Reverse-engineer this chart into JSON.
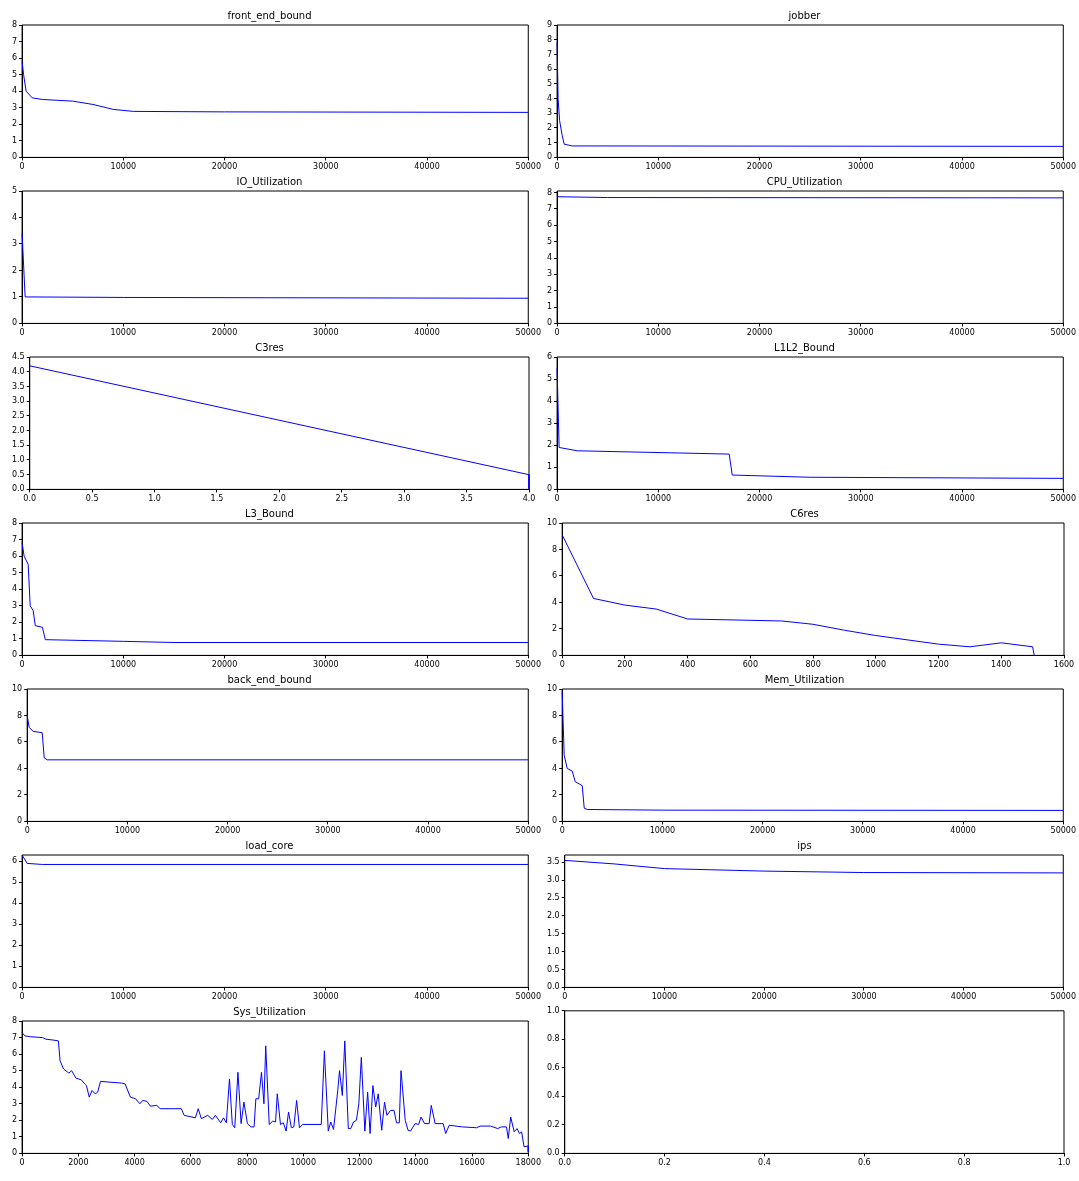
{
  "chart_data": [
    {
      "type": "line",
      "title": "front_end_bound",
      "xlim": [
        0,
        50000
      ],
      "xticks": [
        0,
        10000,
        20000,
        30000,
        40000,
        50000
      ],
      "ylim": [
        0,
        8
      ],
      "yticks": [
        0,
        1,
        2,
        3,
        4,
        5,
        6,
        7,
        8
      ],
      "series": [
        {
          "color": "#0000ff",
          "x": [
            0,
            150,
            400,
            1000,
            2000,
            5000,
            7000,
            9000,
            11000,
            20000,
            50000
          ],
          "values": [
            5.8,
            5.0,
            4.0,
            3.6,
            3.5,
            3.4,
            3.2,
            2.9,
            2.78,
            2.75,
            2.72
          ]
        }
      ]
    },
    {
      "type": "line",
      "title": "jobber",
      "xlim": [
        0,
        50000
      ],
      "xticks": [
        0,
        10000,
        20000,
        30000,
        40000,
        50000
      ],
      "ylim": [
        0,
        9
      ],
      "yticks": [
        0,
        1,
        2,
        3,
        4,
        5,
        6,
        7,
        8,
        9
      ],
      "series": [
        {
          "color": "#0000ff",
          "x": [
            0,
            100,
            250,
            500,
            700,
            1500,
            50000
          ],
          "values": [
            7.8,
            4,
            2.5,
            1.5,
            0.9,
            0.78,
            0.75
          ]
        }
      ]
    },
    {
      "type": "line",
      "title": "IO_Utilization",
      "xlim": [
        0,
        50000
      ],
      "xticks": [
        0,
        10000,
        20000,
        30000,
        40000,
        50000
      ],
      "ylim": [
        0,
        5
      ],
      "yticks": [
        0,
        1,
        2,
        3,
        4,
        5
      ],
      "series": [
        {
          "color": "#0000ff",
          "x": [
            0,
            300,
            10000,
            50000
          ],
          "values": [
            3.4,
            1.0,
            0.98,
            0.95
          ]
        }
      ]
    },
    {
      "type": "line",
      "title": "CPU_Utilization",
      "xlim": [
        0,
        50000
      ],
      "xticks": [
        0,
        10000,
        20000,
        30000,
        40000,
        50000
      ],
      "ylim": [
        0,
        8.1
      ],
      "yticks": [
        0,
        1,
        2,
        3,
        4,
        5,
        6,
        7,
        8
      ],
      "series": [
        {
          "color": "#0000ff",
          "x": [
            0,
            5000,
            50000
          ],
          "values": [
            7.75,
            7.7,
            7.68
          ]
        }
      ]
    },
    {
      "type": "line",
      "title": "C3res",
      "xlim": [
        0,
        4
      ],
      "xticks": [
        {
          "value": 0,
          "label": "0.0"
        },
        {
          "value": 0.5,
          "label": "0.5"
        },
        {
          "value": 1,
          "label": "1.0"
        },
        {
          "value": 1.5,
          "label": "1.5"
        },
        {
          "value": 2,
          "label": "2.0"
        },
        {
          "value": 2.5,
          "label": "2.5"
        },
        {
          "value": 3,
          "label": "3.0"
        },
        {
          "value": 3.5,
          "label": "3.5"
        },
        {
          "value": 4,
          "label": "4.0"
        }
      ],
      "ylim": [
        0,
        4.5
      ],
      "yticks": [
        {
          "value": 0,
          "label": "0.0"
        },
        {
          "value": 0.5,
          "label": "0.5"
        },
        {
          "value": 1,
          "label": "1.0"
        },
        {
          "value": 1.5,
          "label": "1.5"
        },
        {
          "value": 2,
          "label": "2.0"
        },
        {
          "value": 2.5,
          "label": "2.5"
        },
        {
          "value": 3,
          "label": "3.0"
        },
        {
          "value": 3.5,
          "label": "3.5"
        },
        {
          "value": 4,
          "label": "4.0"
        },
        {
          "value": 4.5,
          "label": "4.5"
        }
      ],
      "series": [
        {
          "color": "#0000ff",
          "x": [
            0,
            4,
            4
          ],
          "values": [
            4.2,
            0.5,
            0
          ]
        }
      ]
    },
    {
      "type": "line",
      "title": "L1L2_Bound",
      "xlim": [
        0,
        50000
      ],
      "xticks": [
        0,
        10000,
        20000,
        30000,
        40000,
        50000
      ],
      "ylim": [
        0,
        6
      ],
      "yticks": [
        0,
        1,
        2,
        3,
        4,
        5,
        6
      ],
      "series": [
        {
          "color": "#0000ff",
          "x": [
            0,
            200,
            2000,
            17000,
            17300,
            25000,
            50000
          ],
          "values": [
            5.5,
            1.9,
            1.75,
            1.6,
            0.65,
            0.55,
            0.5
          ]
        }
      ]
    },
    {
      "type": "line",
      "title": "L3_Bound",
      "xlim": [
        0,
        50000
      ],
      "xticks": [
        0,
        10000,
        20000,
        30000,
        40000,
        50000
      ],
      "ylim": [
        0,
        8
      ],
      "yticks": [
        0,
        1,
        2,
        3,
        4,
        5,
        6,
        7,
        8
      ],
      "series": [
        {
          "color": "#0000ff",
          "x": [
            0,
            200,
            600,
            800,
            1100,
            1300,
            2000,
            2300,
            10000,
            15000,
            50000
          ],
          "values": [
            6.8,
            6.0,
            5.5,
            3.0,
            2.7,
            1.8,
            1.7,
            0.95,
            0.85,
            0.78,
            0.78
          ]
        }
      ]
    },
    {
      "type": "line",
      "title": "C6res",
      "xlim": [
        0,
        1600
      ],
      "xticks": [
        0,
        200,
        400,
        600,
        800,
        1000,
        1200,
        1400,
        1600
      ],
      "ylim": [
        0,
        10
      ],
      "yticks": [
        0,
        2,
        4,
        6,
        8,
        10
      ],
      "series": [
        {
          "color": "#0000ff",
          "x": [
            0,
            100,
            200,
            300,
            400,
            700,
            800,
            900,
            1000,
            1200,
            1300,
            1400,
            1500,
            1505
          ],
          "values": [
            9.1,
            4.3,
            3.8,
            3.5,
            2.75,
            2.6,
            2.35,
            1.9,
            1.5,
            0.85,
            0.65,
            0.95,
            0.65,
            0
          ]
        }
      ]
    },
    {
      "type": "line",
      "title": "back_end_bound",
      "xlim": [
        0,
        50000
      ],
      "xticks": [
        0,
        10000,
        20000,
        30000,
        40000,
        50000
      ],
      "ylim": [
        0,
        10
      ],
      "yticks": [
        0,
        2,
        4,
        6,
        8,
        10
      ],
      "series": [
        {
          "color": "#0000ff",
          "x": [
            0,
            200,
            600,
            1500,
            1700,
            2000,
            50000
          ],
          "values": [
            8,
            7.1,
            6.8,
            6.7,
            4.8,
            4.65,
            4.65
          ]
        }
      ]
    },
    {
      "type": "line",
      "title": "Mem_Utilization",
      "xlim": [
        0,
        50000
      ],
      "xticks": [
        0,
        10000,
        20000,
        30000,
        40000,
        50000
      ],
      "ylim": [
        0,
        10
      ],
      "yticks": [
        0,
        2,
        4,
        6,
        8,
        10
      ],
      "series": [
        {
          "color": "#0000ff",
          "x": [
            0,
            200,
            500,
            1000,
            1300,
            2000,
            2200,
            2500,
            10000,
            50000
          ],
          "values": [
            9.8,
            5,
            4,
            3.8,
            3.0,
            2.7,
            1.0,
            0.9,
            0.85,
            0.83
          ]
        }
      ]
    },
    {
      "type": "line",
      "title": "load_core",
      "xlim": [
        0,
        50000
      ],
      "xticks": [
        0,
        10000,
        20000,
        30000,
        40000,
        50000
      ],
      "ylim": [
        0,
        6.3
      ],
      "yticks": [
        0,
        1,
        2,
        3,
        4,
        5,
        6
      ],
      "series": [
        {
          "color": "#0000ff",
          "x": [
            0,
            500,
            2000,
            50000
          ],
          "values": [
            6.3,
            5.9,
            5.85,
            5.85
          ]
        }
      ]
    },
    {
      "type": "line",
      "title": "ips",
      "xlim": [
        0,
        50000
      ],
      "xticks": [
        0,
        10000,
        20000,
        30000,
        40000,
        50000
      ],
      "ylim": [
        0,
        3.7
      ],
      "yticks": [
        {
          "value": 0,
          "label": "0.0"
        },
        {
          "value": 0.5,
          "label": "0.5"
        },
        {
          "value": 1,
          "label": "1.0"
        },
        {
          "value": 1.5,
          "label": "1.5"
        },
        {
          "value": 2,
          "label": "2.0"
        },
        {
          "value": 2.5,
          "label": "2.5"
        },
        {
          "value": 3,
          "label": "3.0"
        },
        {
          "value": 3.5,
          "label": "3.5"
        }
      ],
      "series": [
        {
          "color": "#0000ff",
          "x": [
            0,
            5000,
            10000,
            20000,
            30000,
            50000
          ],
          "values": [
            3.55,
            3.45,
            3.32,
            3.25,
            3.21,
            3.2
          ]
        }
      ]
    },
    {
      "type": "line",
      "title": "Sys_Utilization",
      "xlim": [
        0,
        18000
      ],
      "xticks": [
        0,
        2000,
        4000,
        6000,
        8000,
        10000,
        12000,
        14000,
        16000,
        18000
      ],
      "ylim": [
        0,
        8
      ],
      "yticks": [
        0,
        1,
        2,
        3,
        4,
        5,
        6,
        7,
        8
      ],
      "series": [
        {
          "color": "#0000ff",
          "x": [
            0,
            100,
            300,
            725,
            850,
            1100,
            1290,
            1350,
            1475,
            1663,
            1763,
            1913,
            2100,
            2225,
            2288,
            2388,
            2488,
            2600,
            2688,
            2788,
            3538,
            3663,
            3850,
            4038,
            4188,
            4288,
            4438,
            4563,
            4788,
            4913,
            5663,
            5763,
            6163,
            6263,
            6375,
            6600,
            6763,
            6875,
            7063,
            7163,
            7263,
            7375,
            7475,
            7563,
            7675,
            7788,
            7888,
            8013,
            8138,
            8250,
            8313,
            8413,
            8513,
            8600,
            8663,
            8788,
            8913,
            9013,
            9075,
            9188,
            9288,
            9388,
            9475,
            9575,
            9663,
            9763,
            9863,
            9975,
            10638,
            10750,
            10888,
            10975,
            11075,
            11225,
            11288,
            11388,
            11475,
            11600,
            11688,
            11788,
            11888,
            11975,
            12063,
            12188,
            12288,
            12375,
            12475,
            12575,
            12663,
            12788,
            12888,
            12975,
            13100,
            13225,
            13313,
            13413,
            13475,
            13625,
            13725,
            13813,
            13975,
            14100,
            14188,
            14313,
            14475,
            14550,
            14688,
            14975,
            15063,
            15188,
            15663,
            16163,
            16288,
            16663,
            16913,
            17038,
            17225,
            17288,
            17375,
            17500,
            17600,
            17688,
            17763,
            17850,
            18000,
            18000
          ],
          "values": [
            7.3,
            7.1,
            7.05,
            7.0,
            6.9,
            6.85,
            6.8,
            5.6,
            5.1,
            4.85,
            5.0,
            4.55,
            4.45,
            4.2,
            4.1,
            3.4,
            3.8,
            3.6,
            3.7,
            4.35,
            4.25,
            4.2,
            3.4,
            3.3,
            3.0,
            3.2,
            3.15,
            2.85,
            2.9,
            2.7,
            2.7,
            2.3,
            2.15,
            2.7,
            2.1,
            2.3,
            2.05,
            2.3,
            1.85,
            2.15,
            1.85,
            4.5,
            1.75,
            1.55,
            4.9,
            1.8,
            3.1,
            1.8,
            1.6,
            1.6,
            3.3,
            3.3,
            4.9,
            3.0,
            6.5,
            1.75,
            1.95,
            1.9,
            3.6,
            1.75,
            1.85,
            1.35,
            2.5,
            1.55,
            1.6,
            3.2,
            1.55,
            1.75,
            1.75,
            6.2,
            1.35,
            1.9,
            1.45,
            3.8,
            5.0,
            3.5,
            6.8,
            1.5,
            1.5,
            1.9,
            2.0,
            3.0,
            5.8,
            1.35,
            3.7,
            1.2,
            4.1,
            2.8,
            3.6,
            1.4,
            3.1,
            2.3,
            2.6,
            2.6,
            1.85,
            1.85,
            5.0,
            2.0,
            1.4,
            1.35,
            1.8,
            1.75,
            2.2,
            1.8,
            1.8,
            2.9,
            1.8,
            1.8,
            1.2,
            1.7,
            1.6,
            1.55,
            1.65,
            1.65,
            1.5,
            1.6,
            1.6,
            0.9,
            2.2,
            1.3,
            1.5,
            1.2,
            1.3,
            0.4,
            0.45,
            0.1
          ]
        }
      ]
    },
    {
      "type": "line",
      "xlim": [
        0,
        1
      ],
      "xticks": [
        {
          "value": 0,
          "label": "0.0"
        },
        {
          "value": 0.2,
          "label": "0.2"
        },
        {
          "value": 0.4,
          "label": "0.4"
        },
        {
          "value": 0.6,
          "label": "0.6"
        },
        {
          "value": 0.8,
          "label": "0.8"
        },
        {
          "value": 1,
          "label": "1.0"
        }
      ],
      "ylim": [
        0,
        1
      ],
      "yticks": [
        {
          "value": 0,
          "label": "0.0"
        },
        {
          "value": 0.2,
          "label": "0.2"
        },
        {
          "value": 0.4,
          "label": "0.4"
        },
        {
          "value": 0.6,
          "label": "0.6"
        },
        {
          "value": 0.8,
          "label": "0.8"
        },
        {
          "value": 1,
          "label": "1.0"
        }
      ]
    }
  ]
}
